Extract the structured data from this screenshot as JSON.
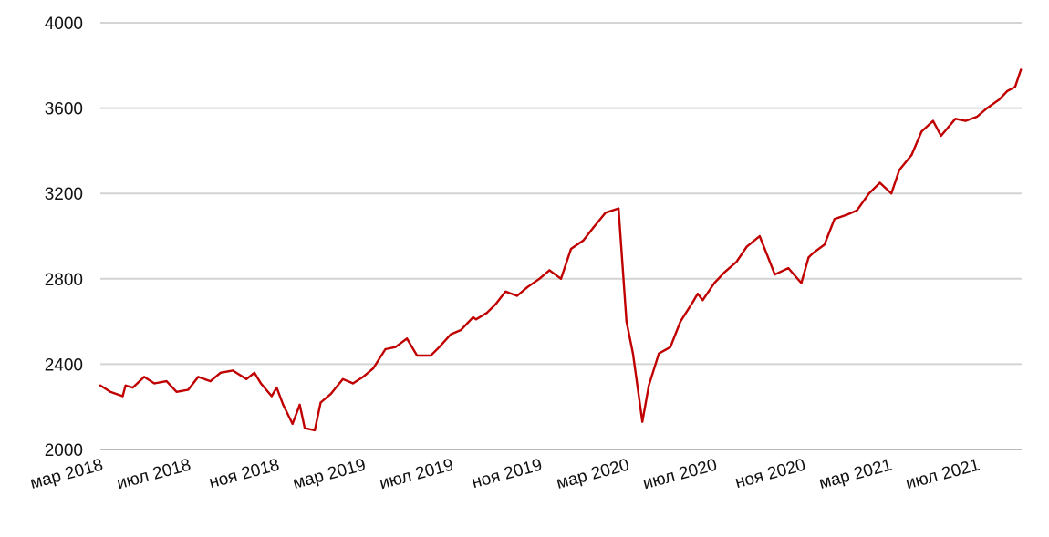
{
  "chart_data": {
    "type": "line",
    "title": "",
    "xlabel": "",
    "ylabel": "",
    "ylim": [
      2000,
      4000
    ],
    "y_ticks": [
      2000,
      2400,
      2800,
      3200,
      3600,
      4000
    ],
    "y_tick_labels": [
      "2000",
      "2400",
      "2800",
      "3200",
      "3600",
      "4000"
    ],
    "x_tick_labels": [
      "мар 2018",
      "июл 2018",
      "ноя 2018",
      "мар 2019",
      "июл 2019",
      "ноя 2019",
      "мар 2020",
      "июл 2020",
      "ноя 2020",
      "мар 2021",
      "июл 2021"
    ],
    "grid": "horizontal",
    "colors": {
      "line": "#c00000",
      "grid": "#d4d4d4"
    },
    "series": [
      {
        "name": "",
        "x": [
          "2018-03-01",
          "2018-03-15",
          "2018-04-01",
          "2018-04-05",
          "2018-04-15",
          "2018-05-01",
          "2018-05-15",
          "2018-06-01",
          "2018-06-15",
          "2018-07-01",
          "2018-07-15",
          "2018-08-01",
          "2018-08-15",
          "2018-09-01",
          "2018-09-20",
          "2018-10-01",
          "2018-10-10",
          "2018-10-25",
          "2018-11-01",
          "2018-11-10",
          "2018-11-23",
          "2018-12-03",
          "2018-12-10",
          "2018-12-24",
          "2019-01-01",
          "2019-01-15",
          "2019-02-01",
          "2019-02-15",
          "2019-03-01",
          "2019-03-15",
          "2019-04-01",
          "2019-04-15",
          "2019-05-01",
          "2019-05-15",
          "2019-06-03",
          "2019-06-15",
          "2019-07-01",
          "2019-07-15",
          "2019-08-01",
          "2019-08-05",
          "2019-08-20",
          "2019-09-01",
          "2019-09-15",
          "2019-10-01",
          "2019-10-15",
          "2019-11-01",
          "2019-11-15",
          "2019-12-01",
          "2019-12-15",
          "2020-01-01",
          "2020-01-15",
          "2020-02-01",
          "2020-02-19",
          "2020-03-01",
          "2020-03-10",
          "2020-03-23",
          "2020-04-01",
          "2020-04-15",
          "2020-05-01",
          "2020-05-15",
          "2020-06-01",
          "2020-06-08",
          "2020-06-15",
          "2020-07-01",
          "2020-07-15",
          "2020-08-01",
          "2020-08-15",
          "2020-09-02",
          "2020-09-15",
          "2020-09-23",
          "2020-10-12",
          "2020-10-30",
          "2020-11-09",
          "2020-11-15",
          "2020-12-01",
          "2020-12-15",
          "2021-01-01",
          "2021-01-15",
          "2021-02-01",
          "2021-02-16",
          "2021-03-04",
          "2021-03-15",
          "2021-04-01",
          "2021-04-15",
          "2021-05-01",
          "2021-05-12",
          "2021-06-01",
          "2021-06-15",
          "2021-07-01",
          "2021-07-15",
          "2021-08-01",
          "2021-08-12",
          "2021-08-23",
          "2021-08-31"
        ],
        "values": [
          2300,
          2270,
          2250,
          2300,
          2290,
          2340,
          2310,
          2320,
          2270,
          2280,
          2340,
          2320,
          2360,
          2370,
          2330,
          2360,
          2310,
          2250,
          2290,
          2210,
          2120,
          2210,
          2100,
          2090,
          2220,
          2260,
          2330,
          2310,
          2340,
          2380,
          2470,
          2480,
          2520,
          2440,
          2440,
          2480,
          2540,
          2560,
          2620,
          2610,
          2640,
          2680,
          2740,
          2720,
          2760,
          2800,
          2840,
          2800,
          2940,
          2980,
          3040,
          3110,
          3130,
          2600,
          2450,
          2130,
          2300,
          2450,
          2480,
          2600,
          2690,
          2730,
          2700,
          2780,
          2830,
          2880,
          2950,
          3000,
          2890,
          2820,
          2850,
          2780,
          2900,
          2920,
          2960,
          3080,
          3100,
          3120,
          3200,
          3250,
          3200,
          3310,
          3380,
          3490,
          3540,
          3470,
          3550,
          3540,
          3560,
          3600,
          3640,
          3680,
          3700,
          3780
        ]
      }
    ]
  }
}
